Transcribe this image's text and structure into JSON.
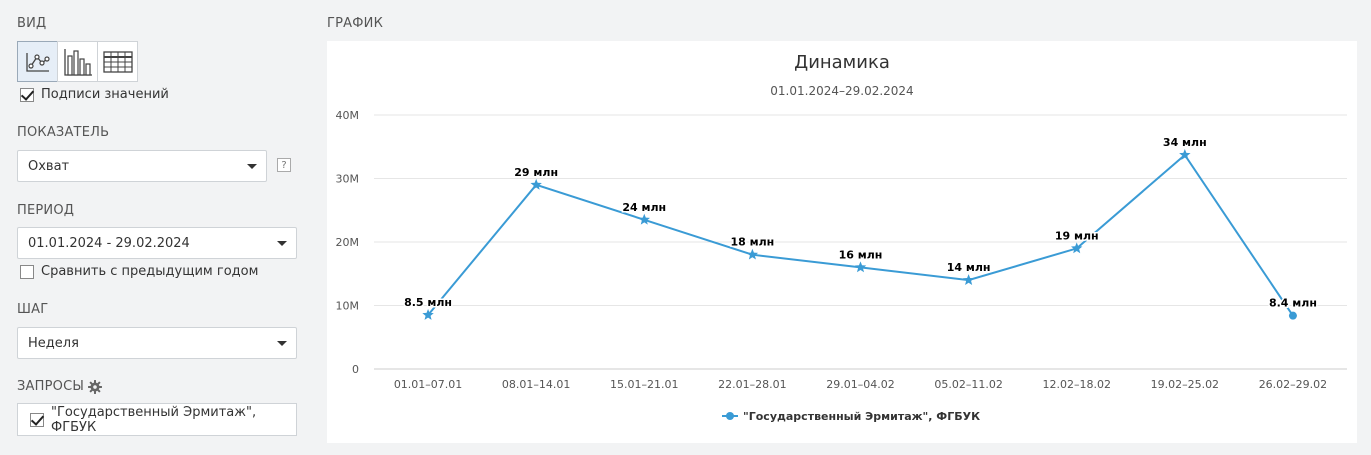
{
  "sidebar": {
    "view_label": "ВИД",
    "value_labels_checkbox": "Подписи значений",
    "metric_label": "ПОКАЗАТЕЛЬ",
    "metric_value": "Охват",
    "help_mark": "?",
    "period_label": "ПЕРИОД",
    "period_value": "01.01.2024 - 29.02.2024",
    "compare_checkbox": "Сравнить с предыдущим годом",
    "step_label": "ШАГ",
    "step_value": "Неделя",
    "queries_label": "ЗАПРОСЫ",
    "query_item": "\"Государственный Эрмитаж\", ФГБУК"
  },
  "chart_panel": {
    "header": "ГРАФИК"
  },
  "chart_data": {
    "type": "line",
    "title": "Динамика",
    "subtitle": "01.01.2024–29.02.2024",
    "categories": [
      "01.01–07.01",
      "08.01–14.01",
      "15.01–21.01",
      "22.01–28.01",
      "29.01–04.02",
      "05.02–11.02",
      "12.02–18.02",
      "19.02–25.02",
      "26.02–29.02"
    ],
    "y_ticks": [
      "0",
      "10M",
      "20M",
      "30M",
      "40M"
    ],
    "ylim": [
      0,
      40000000
    ],
    "grid": true,
    "legend_position": "bottom-center",
    "series": [
      {
        "name": "\"Государственный Эрмитаж\", ФГБУК",
        "color": "#3a9bd5",
        "values": [
          8500000,
          29000000,
          23500000,
          18000000,
          16000000,
          14000000,
          19000000,
          33700000,
          8400000
        ],
        "data_labels": [
          "8.5 млн",
          "29 млн",
          "24 млн",
          "18 млн",
          "16 млн",
          "14 млн",
          "19 млн",
          "34 млн",
          "8.4 млн"
        ]
      }
    ]
  }
}
